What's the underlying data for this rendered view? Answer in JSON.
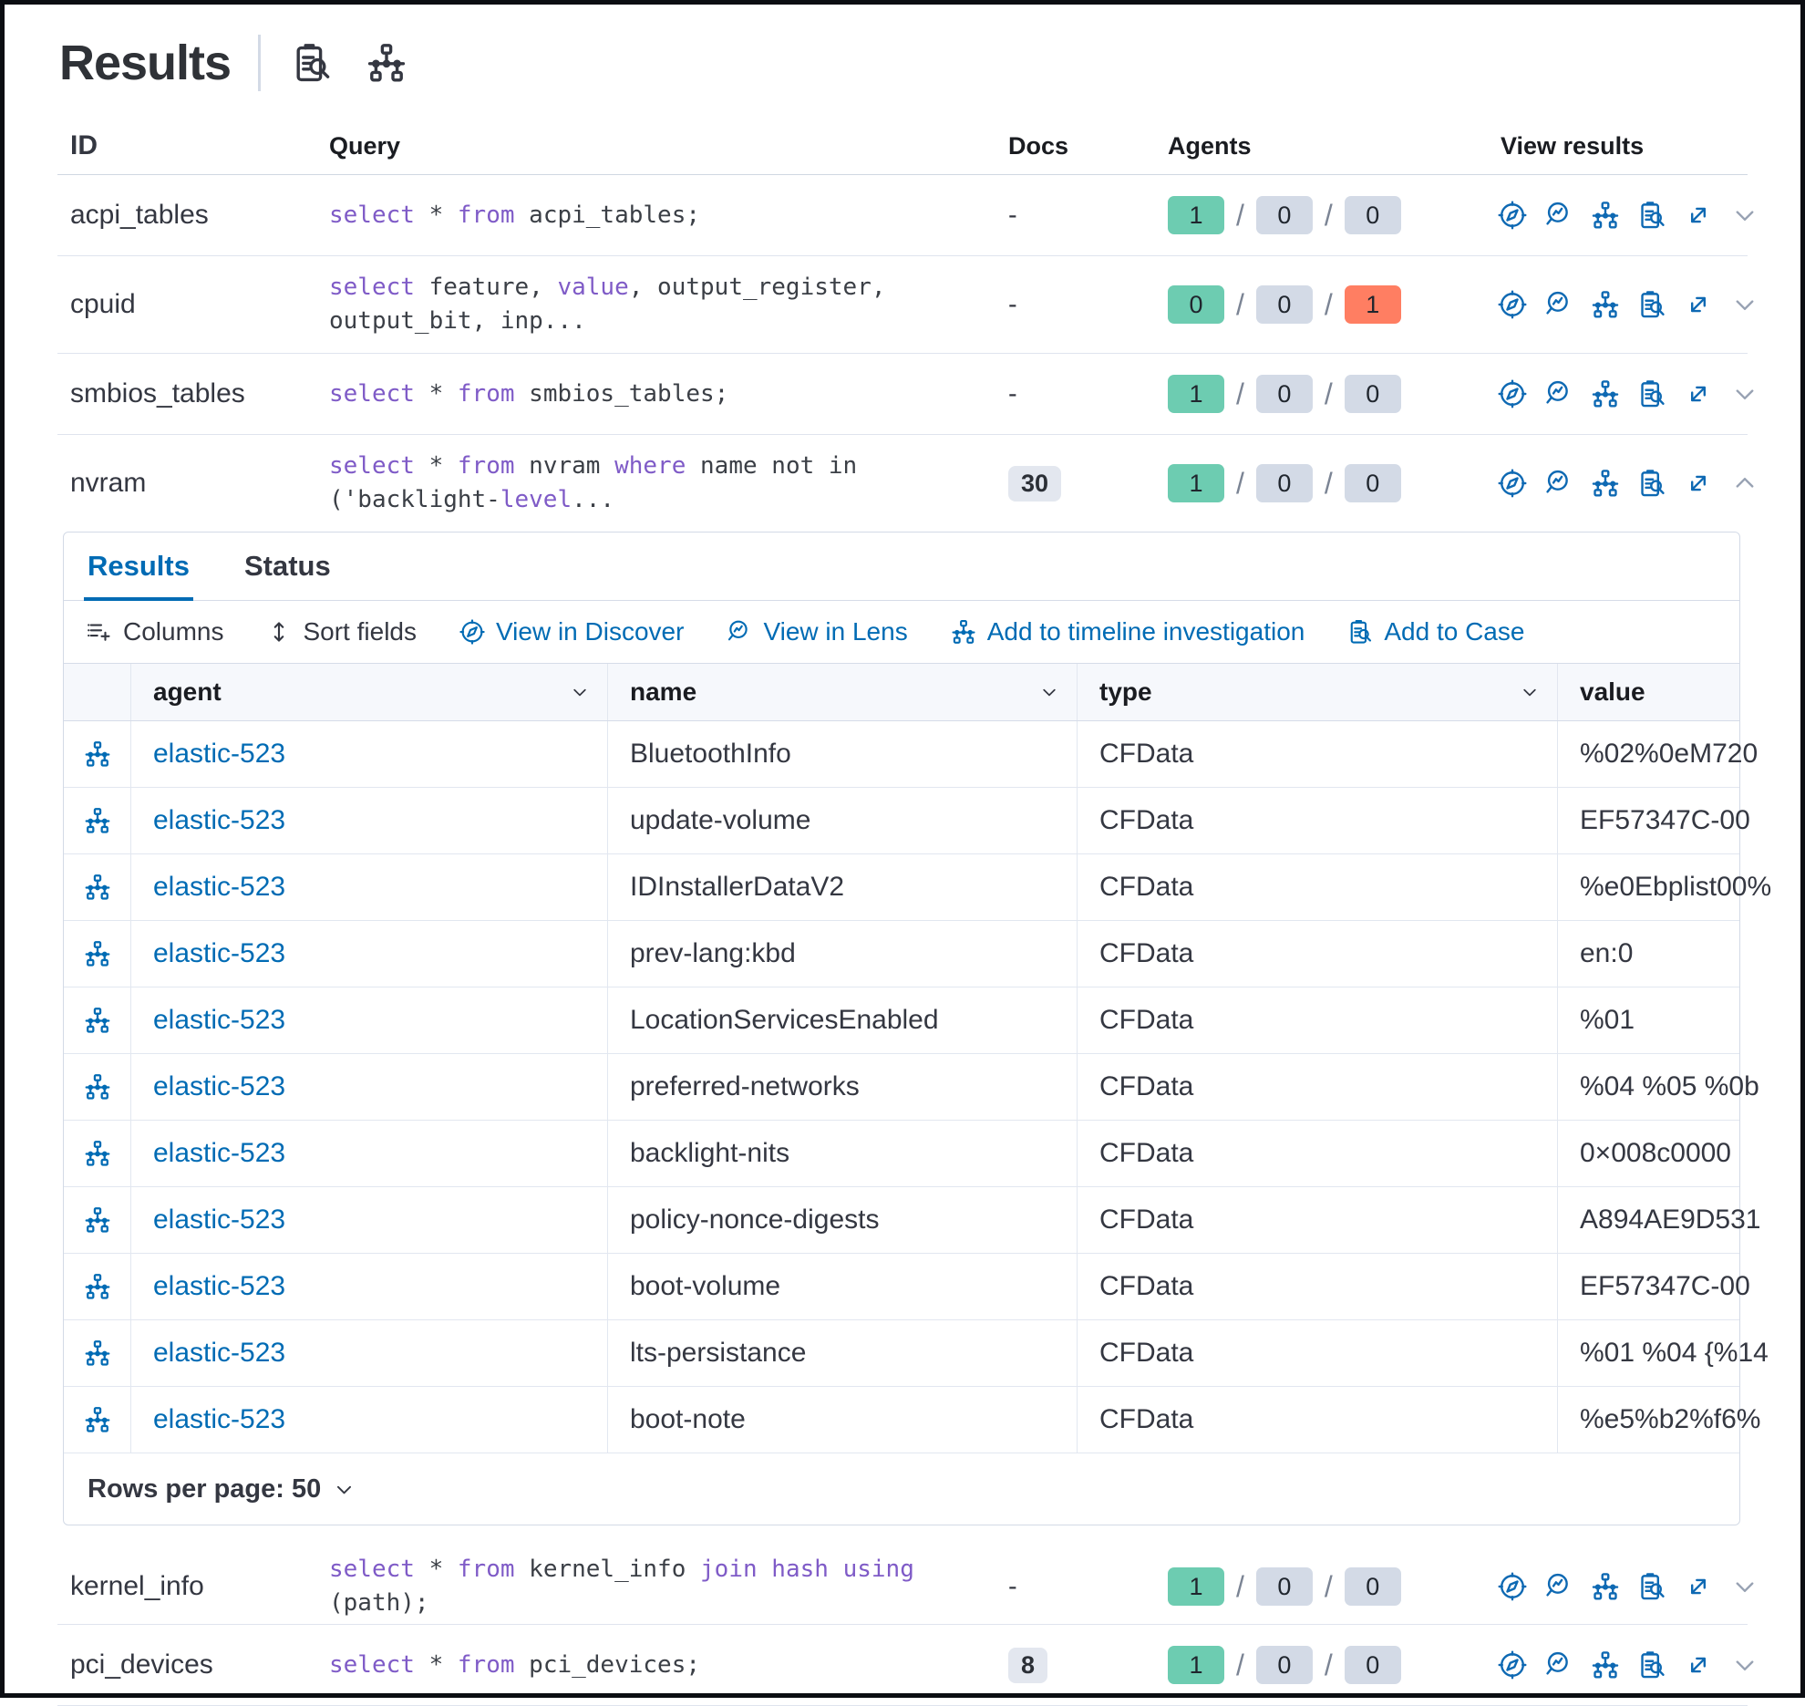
{
  "title": "Results",
  "title_icons": [
    "case-icon",
    "timeline-icon"
  ],
  "colors": {
    "primary_blue": "#006bb4",
    "keyword_purple": "#7f5bc7",
    "success_green": "#6dccb1",
    "neutral_gray": "#d3dae6",
    "danger_red": "#ff7e62",
    "docs_badge_bg": "#e3e7ef",
    "text": "#343741",
    "border": "#d3dae6"
  },
  "outer_table": {
    "columns": [
      "ID",
      "Query",
      "Docs",
      "Agents",
      "View results"
    ],
    "view_icons": [
      "discover",
      "lens",
      "timeline",
      "case",
      "expand"
    ],
    "rows": [
      {
        "id": "acpi_tables",
        "query": [
          [
            "select",
            "k"
          ],
          [
            " * ",
            "t"
          ],
          [
            "from",
            "k"
          ],
          [
            " acpi_tables;",
            "t"
          ]
        ],
        "docs": "-",
        "docs_is_badge": false,
        "agents": [
          [
            "1",
            "green"
          ],
          [
            "0",
            "gray"
          ],
          [
            "0",
            "gray"
          ]
        ],
        "expanded": false,
        "two_line": false
      },
      {
        "id": "cpuid",
        "query": [
          [
            "select",
            "k"
          ],
          [
            " feature, ",
            "t"
          ],
          [
            "value",
            "k"
          ],
          [
            ", output_register,\noutput_bit, inp...",
            "t"
          ]
        ],
        "docs": "-",
        "docs_is_badge": false,
        "agents": [
          [
            "0",
            "green"
          ],
          [
            "0",
            "gray"
          ],
          [
            "1",
            "red"
          ]
        ],
        "expanded": false,
        "two_line": true
      },
      {
        "id": "smbios_tables",
        "query": [
          [
            "select",
            "k"
          ],
          [
            " * ",
            "t"
          ],
          [
            "from",
            "k"
          ],
          [
            " smbios_tables;",
            "t"
          ]
        ],
        "docs": "-",
        "docs_is_badge": false,
        "agents": [
          [
            "1",
            "green"
          ],
          [
            "0",
            "gray"
          ],
          [
            "0",
            "gray"
          ]
        ],
        "expanded": false,
        "two_line": false
      },
      {
        "id": "nvram",
        "query": [
          [
            "select",
            "k"
          ],
          [
            " * ",
            "t"
          ],
          [
            "from",
            "k"
          ],
          [
            " nvram ",
            "t"
          ],
          [
            "where",
            "k"
          ],
          [
            " name not in\n('backlight-",
            "t"
          ],
          [
            "level",
            "k"
          ],
          [
            "...",
            "t"
          ]
        ],
        "docs": "30",
        "docs_is_badge": true,
        "agents": [
          [
            "1",
            "green"
          ],
          [
            "0",
            "gray"
          ],
          [
            "0",
            "gray"
          ]
        ],
        "expanded": true,
        "two_line": true
      },
      {
        "id": "kernel_info",
        "query": [
          [
            "select",
            "k"
          ],
          [
            " * ",
            "t"
          ],
          [
            "from",
            "k"
          ],
          [
            " kernel_info ",
            "t"
          ],
          [
            "join",
            "k"
          ],
          [
            " ",
            "t"
          ],
          [
            "hash",
            "k"
          ],
          [
            " ",
            "t"
          ],
          [
            "using",
            "k"
          ],
          [
            " (path);",
            "t"
          ]
        ],
        "docs": "-",
        "docs_is_badge": false,
        "agents": [
          [
            "1",
            "green"
          ],
          [
            "0",
            "gray"
          ],
          [
            "0",
            "gray"
          ]
        ],
        "expanded": false,
        "two_line": false
      },
      {
        "id": "pci_devices",
        "query": [
          [
            "select",
            "k"
          ],
          [
            " * ",
            "t"
          ],
          [
            "from",
            "k"
          ],
          [
            " pci_devices;",
            "t"
          ]
        ],
        "docs": "8",
        "docs_is_badge": true,
        "agents": [
          [
            "1",
            "green"
          ],
          [
            "0",
            "gray"
          ],
          [
            "0",
            "gray"
          ]
        ],
        "expanded": false,
        "two_line": false
      }
    ]
  },
  "panel": {
    "tabs": [
      {
        "label": "Results",
        "active": true
      },
      {
        "label": "Status",
        "active": false
      }
    ],
    "toolbar": [
      {
        "label": "Columns",
        "icon": "columns",
        "style": "dark"
      },
      {
        "label": "Sort fields",
        "icon": "sort",
        "style": "dark"
      },
      {
        "label": "View in Discover",
        "icon": "discover",
        "style": "blue"
      },
      {
        "label": "View in Lens",
        "icon": "lens",
        "style": "blue"
      },
      {
        "label": "Add to timeline investigation",
        "icon": "timeline",
        "style": "blue"
      },
      {
        "label": "Add to Case",
        "icon": "case",
        "style": "blue"
      }
    ],
    "table": {
      "columns": [
        {
          "label": "agent",
          "sortable": true
        },
        {
          "label": "name",
          "sortable": true
        },
        {
          "label": "type",
          "sortable": true
        },
        {
          "label": "value",
          "sortable": false
        }
      ],
      "rows": [
        {
          "agent": "elastic-523",
          "name": "BluetoothInfo",
          "type": "CFData",
          "value": "%02%0eM720"
        },
        {
          "agent": "elastic-523",
          "name": "update-volume",
          "type": "CFData",
          "value": "EF57347C-00"
        },
        {
          "agent": "elastic-523",
          "name": "IDInstallerDataV2",
          "type": "CFData",
          "value": "%e0Ebplist00%"
        },
        {
          "agent": "elastic-523",
          "name": "prev-lang:kbd",
          "type": "CFData",
          "value": "en:0"
        },
        {
          "agent": "elastic-523",
          "name": "LocationServicesEnabled",
          "type": "CFData",
          "value": "%01"
        },
        {
          "agent": "elastic-523",
          "name": "preferred-networks",
          "type": "CFData",
          "value": "%04 %05 %0b"
        },
        {
          "agent": "elastic-523",
          "name": "backlight-nits",
          "type": "CFData",
          "value": "0×008c0000"
        },
        {
          "agent": "elastic-523",
          "name": "policy-nonce-digests",
          "type": "CFData",
          "value": "A894AE9D531"
        },
        {
          "agent": "elastic-523",
          "name": "boot-volume",
          "type": "CFData",
          "value": "EF57347C-00"
        },
        {
          "agent": "elastic-523",
          "name": "lts-persistance",
          "type": "CFData",
          "value": "%01 %04 {%14"
        },
        {
          "agent": "elastic-523",
          "name": "boot-note",
          "type": "CFData",
          "value": "%e5%b2%f6%"
        }
      ]
    },
    "footer": {
      "rows_per_page_label": "Rows per page: 50"
    }
  }
}
